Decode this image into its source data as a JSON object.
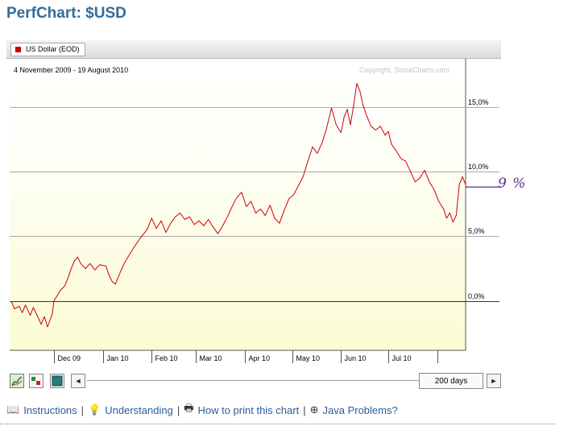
{
  "page": {
    "title": "PerfChart: $USD"
  },
  "legend": {
    "label": "US Dollar (EOD)",
    "color": "#cc0000"
  },
  "chart_header": {
    "date_range": "4 November 2009 - 19 August 2010",
    "copyright": "Copyright, StockCharts.com"
  },
  "annotation": {
    "text": "9 %",
    "color": "#5c2e82"
  },
  "controls": {
    "buttons": [
      "chart-line-icon",
      "chart-bar-icon",
      "chart-area-icon"
    ],
    "days_label": "200 days",
    "left_arrow": "◄",
    "right_arrow": "►"
  },
  "links": [
    {
      "icon": "book-icon",
      "glyph": "📖",
      "label": "Instructions"
    },
    {
      "icon": "lightbulb-icon",
      "glyph": "💡",
      "label": "Understanding"
    },
    {
      "icon": "printer-icon",
      "glyph": "🖶",
      "label": "How to print this chart"
    },
    {
      "icon": "lifebuoy-icon",
      "glyph": "⊕",
      "label": "Java Problems?"
    }
  ],
  "chart_data": {
    "type": "line",
    "title": "",
    "xlabel": "",
    "ylabel": "",
    "ylim": [
      -3.8,
      18.7
    ],
    "yticks": [
      {
        "value": 15,
        "label": "15,0%"
      },
      {
        "value": 10,
        "label": "10,0%"
      },
      {
        "value": 5,
        "label": "5,0%"
      },
      {
        "value": 0,
        "label": "0,0%"
      }
    ],
    "xticks": [
      {
        "date": "2009-12-01",
        "label": "Dec 09"
      },
      {
        "date": "2010-01-01",
        "label": "Jan 10"
      },
      {
        "date": "2010-02-01",
        "label": "Feb 10"
      },
      {
        "date": "2010-03-01",
        "label": "Mar 10"
      },
      {
        "date": "2010-04-01",
        "label": "Apr 10"
      },
      {
        "date": "2010-05-01",
        "label": "May 10"
      },
      {
        "date": "2010-06-01",
        "label": "Jun 10"
      },
      {
        "date": "2010-07-01",
        "label": "Jul 10"
      },
      {
        "date": "2010-08-01",
        "label": ""
      }
    ],
    "x_start": "2009-11-04",
    "x_end": "2010-08-19",
    "grid": true,
    "series": [
      {
        "name": "US Dollar (EOD)",
        "color": "#cc0000",
        "points": [
          [
            "2009-11-04",
            0.0
          ],
          [
            "2009-11-06",
            -0.6
          ],
          [
            "2009-11-09",
            -0.4
          ],
          [
            "2009-11-11",
            -0.9
          ],
          [
            "2009-11-13",
            -0.3
          ],
          [
            "2009-11-16",
            -1.1
          ],
          [
            "2009-11-18",
            -0.5
          ],
          [
            "2009-11-20",
            -1.0
          ],
          [
            "2009-11-23",
            -1.8
          ],
          [
            "2009-11-25",
            -1.2
          ],
          [
            "2009-11-27",
            -2.0
          ],
          [
            "2009-11-30",
            -1.0
          ],
          [
            "2009-12-01",
            0.0
          ],
          [
            "2009-12-03",
            0.4
          ],
          [
            "2009-12-05",
            0.8
          ],
          [
            "2009-12-08",
            1.2
          ],
          [
            "2009-12-10",
            1.8
          ],
          [
            "2009-12-12",
            2.5
          ],
          [
            "2009-12-14",
            3.1
          ],
          [
            "2009-12-16",
            3.4
          ],
          [
            "2009-12-18",
            2.9
          ],
          [
            "2009-12-21",
            2.5
          ],
          [
            "2009-12-24",
            2.9
          ],
          [
            "2009-12-27",
            2.4
          ],
          [
            "2009-12-30",
            2.8
          ],
          [
            "2010-01-03",
            2.7
          ],
          [
            "2010-01-05",
            2.0
          ],
          [
            "2010-01-07",
            1.5
          ],
          [
            "2010-01-09",
            1.3
          ],
          [
            "2010-01-12",
            2.2
          ],
          [
            "2010-01-15",
            3.0
          ],
          [
            "2010-01-18",
            3.6
          ],
          [
            "2010-01-21",
            4.2
          ],
          [
            "2010-01-25",
            4.9
          ],
          [
            "2010-01-29",
            5.5
          ],
          [
            "2010-02-01",
            6.4
          ],
          [
            "2010-02-04",
            5.6
          ],
          [
            "2010-02-07",
            6.2
          ],
          [
            "2010-02-10",
            5.3
          ],
          [
            "2010-02-13",
            6.0
          ],
          [
            "2010-02-16",
            6.5
          ],
          [
            "2010-02-19",
            6.8
          ],
          [
            "2010-02-22",
            6.3
          ],
          [
            "2010-02-25",
            6.5
          ],
          [
            "2010-02-28",
            5.9
          ],
          [
            "2010-03-03",
            6.2
          ],
          [
            "2010-03-06",
            5.8
          ],
          [
            "2010-03-09",
            6.3
          ],
          [
            "2010-03-12",
            5.7
          ],
          [
            "2010-03-15",
            5.2
          ],
          [
            "2010-03-18",
            5.8
          ],
          [
            "2010-03-21",
            6.5
          ],
          [
            "2010-03-24",
            7.3
          ],
          [
            "2010-03-27",
            8.0
          ],
          [
            "2010-03-30",
            8.4
          ],
          [
            "2010-04-02",
            7.3
          ],
          [
            "2010-04-05",
            7.7
          ],
          [
            "2010-04-08",
            6.8
          ],
          [
            "2010-04-11",
            7.1
          ],
          [
            "2010-04-14",
            6.6
          ],
          [
            "2010-04-17",
            7.4
          ],
          [
            "2010-04-20",
            6.4
          ],
          [
            "2010-04-23",
            6.0
          ],
          [
            "2010-04-26",
            7.0
          ],
          [
            "2010-04-29",
            7.9
          ],
          [
            "2010-05-02",
            8.2
          ],
          [
            "2010-05-05",
            8.9
          ],
          [
            "2010-05-08",
            9.6
          ],
          [
            "2010-05-11",
            10.8
          ],
          [
            "2010-05-14",
            11.9
          ],
          [
            "2010-05-17",
            11.4
          ],
          [
            "2010-05-20",
            12.2
          ],
          [
            "2010-05-23",
            13.4
          ],
          [
            "2010-05-26",
            14.9
          ],
          [
            "2010-05-29",
            13.6
          ],
          [
            "2010-06-01",
            13.0
          ],
          [
            "2010-06-03",
            14.2
          ],
          [
            "2010-06-05",
            14.8
          ],
          [
            "2010-06-07",
            13.6
          ],
          [
            "2010-06-09",
            15.1
          ],
          [
            "2010-06-11",
            16.8
          ],
          [
            "2010-06-13",
            16.2
          ],
          [
            "2010-06-15",
            15.1
          ],
          [
            "2010-06-17",
            14.4
          ],
          [
            "2010-06-20",
            13.5
          ],
          [
            "2010-06-23",
            13.2
          ],
          [
            "2010-06-26",
            13.5
          ],
          [
            "2010-06-29",
            12.8
          ],
          [
            "2010-07-01",
            13.1
          ],
          [
            "2010-07-03",
            12.1
          ],
          [
            "2010-07-06",
            11.6
          ],
          [
            "2010-07-09",
            11.0
          ],
          [
            "2010-07-12",
            10.8
          ],
          [
            "2010-07-15",
            10.0
          ],
          [
            "2010-07-18",
            9.2
          ],
          [
            "2010-07-21",
            9.5
          ],
          [
            "2010-07-24",
            10.1
          ],
          [
            "2010-07-27",
            9.2
          ],
          [
            "2010-07-30",
            8.6
          ],
          [
            "2010-08-02",
            7.7
          ],
          [
            "2010-08-05",
            7.1
          ],
          [
            "2010-08-07",
            6.4
          ],
          [
            "2010-08-09",
            6.8
          ],
          [
            "2010-08-11",
            6.1
          ],
          [
            "2010-08-13",
            6.6
          ],
          [
            "2010-08-15",
            9.0
          ],
          [
            "2010-08-17",
            9.6
          ],
          [
            "2010-08-19",
            9.0
          ],
          [
            "2010-08-19",
            8.8
          ]
        ]
      }
    ],
    "reference_line": {
      "value": 8.8,
      "label": "9 %"
    }
  }
}
